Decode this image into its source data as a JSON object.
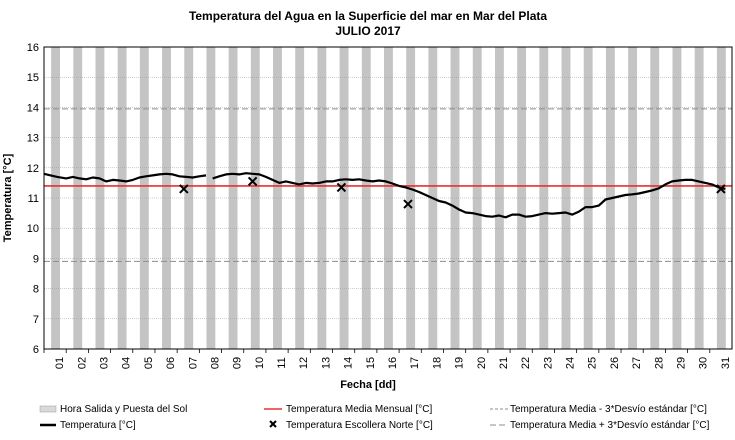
{
  "chart_data": {
    "type": "line",
    "title": "Temperatura del Agua en la Superficie del mar en Mar del Plata",
    "subtitle": "JULIO 2017",
    "xlabel": "Fecha [dd]",
    "ylabel": "Temperatura [°C]",
    "ylim": [
      6,
      16
    ],
    "yticks": [
      6,
      7,
      8,
      9,
      10,
      11,
      12,
      13,
      14,
      15,
      16
    ],
    "xlim": [
      1,
      32
    ],
    "categories": [
      "01",
      "02",
      "03",
      "04",
      "05",
      "06",
      "07",
      "08",
      "09",
      "10",
      "11",
      "12",
      "13",
      "14",
      "15",
      "16",
      "17",
      "18",
      "19",
      "20",
      "21",
      "22",
      "23",
      "24",
      "25",
      "26",
      "27",
      "28",
      "29",
      "30",
      "31"
    ],
    "grid": true,
    "legend_position": "bottom",
    "series": [
      {
        "name": "Temperatura [°C]",
        "color": "#000000",
        "segments": [
          [
            [
              1.0,
              11.8
            ],
            [
              1.3,
              11.75
            ],
            [
              1.6,
              11.7
            ],
            [
              2.0,
              11.65
            ],
            [
              2.3,
              11.7
            ],
            [
              2.6,
              11.65
            ],
            [
              2.9,
              11.62
            ],
            [
              3.2,
              11.68
            ],
            [
              3.5,
              11.65
            ],
            [
              3.8,
              11.55
            ],
            [
              4.1,
              11.6
            ],
            [
              4.4,
              11.58
            ],
            [
              4.7,
              11.55
            ],
            [
              5.0,
              11.6
            ],
            [
              5.3,
              11.68
            ],
            [
              5.6,
              11.72
            ],
            [
              5.9,
              11.75
            ],
            [
              6.2,
              11.78
            ],
            [
              6.5,
              11.8
            ],
            [
              6.8,
              11.78
            ],
            [
              7.1,
              11.72
            ],
            [
              7.4,
              11.7
            ],
            [
              7.7,
              11.68
            ],
            [
              8.0,
              11.72
            ],
            [
              8.3,
              11.75
            ]
          ],
          [
            [
              8.6,
              11.65
            ],
            [
              8.9,
              11.72
            ],
            [
              9.2,
              11.78
            ],
            [
              9.5,
              11.8
            ],
            [
              9.8,
              11.78
            ],
            [
              10.1,
              11.82
            ],
            [
              10.4,
              11.8
            ],
            [
              10.7,
              11.78
            ],
            [
              11.0,
              11.7
            ],
            [
              11.3,
              11.6
            ],
            [
              11.6,
              11.5
            ],
            [
              11.9,
              11.55
            ],
            [
              12.2,
              11.5
            ],
            [
              12.5,
              11.45
            ],
            [
              12.8,
              11.5
            ],
            [
              13.1,
              11.48
            ],
            [
              13.4,
              11.5
            ],
            [
              13.7,
              11.55
            ],
            [
              14.0,
              11.55
            ],
            [
              14.3,
              11.6
            ],
            [
              14.6,
              11.62
            ],
            [
              14.9,
              11.6
            ],
            [
              15.2,
              11.62
            ],
            [
              15.5,
              11.58
            ],
            [
              15.8,
              11.55
            ],
            [
              16.1,
              11.58
            ],
            [
              16.4,
              11.55
            ],
            [
              16.7,
              11.48
            ],
            [
              17.0,
              11.4
            ],
            [
              17.3,
              11.35
            ],
            [
              17.6,
              11.28
            ],
            [
              17.9,
              11.2
            ],
            [
              18.2,
              11.1
            ],
            [
              18.5,
              11.0
            ],
            [
              18.8,
              10.9
            ],
            [
              19.1,
              10.85
            ],
            [
              19.4,
              10.75
            ],
            [
              19.7,
              10.62
            ],
            [
              20.0,
              10.52
            ],
            [
              20.3,
              10.5
            ],
            [
              20.6,
              10.45
            ],
            [
              20.9,
              10.4
            ],
            [
              21.2,
              10.38
            ],
            [
              21.5,
              10.42
            ],
            [
              21.8,
              10.36
            ],
            [
              22.1,
              10.45
            ],
            [
              22.4,
              10.45
            ],
            [
              22.7,
              10.38
            ],
            [
              23.0,
              10.4
            ],
            [
              23.3,
              10.45
            ],
            [
              23.6,
              10.5
            ],
            [
              23.9,
              10.48
            ],
            [
              24.2,
              10.5
            ],
            [
              24.5,
              10.52
            ],
            [
              24.8,
              10.45
            ],
            [
              25.1,
              10.55
            ],
            [
              25.4,
              10.7
            ],
            [
              25.7,
              10.7
            ],
            [
              26.0,
              10.75
            ],
            [
              26.3,
              10.95
            ],
            [
              26.6,
              11.0
            ],
            [
              26.9,
              11.05
            ],
            [
              27.2,
              11.1
            ],
            [
              27.5,
              11.12
            ],
            [
              27.8,
              11.15
            ],
            [
              28.1,
              11.2
            ],
            [
              28.4,
              11.25
            ],
            [
              28.7,
              11.32
            ],
            [
              29.0,
              11.45
            ],
            [
              29.3,
              11.55
            ],
            [
              29.6,
              11.58
            ],
            [
              29.9,
              11.6
            ],
            [
              30.2,
              11.6
            ],
            [
              30.5,
              11.55
            ],
            [
              30.8,
              11.5
            ],
            [
              31.1,
              11.45
            ],
            [
              31.4,
              11.35
            ],
            [
              31.7,
              11.3
            ]
          ]
        ]
      },
      {
        "name": "Temperatura Media Mensual [°C]",
        "color": "#e8302f",
        "value": 11.4
      },
      {
        "name": "Temperatura Media - 3*Desvío estándar [°C]",
        "color": "#8c8c8c",
        "value": 8.9
      },
      {
        "name": "Temperatura Media + 3*Desvío estándar [°C]",
        "color": "#8c8c8c",
        "value": 13.95
      },
      {
        "name": "Temperatura Escollera Norte [°C]",
        "color": "#000000",
        "points": [
          [
            7.3,
            11.3
          ],
          [
            10.4,
            11.55
          ],
          [
            14.4,
            11.35
          ],
          [
            17.4,
            10.8
          ],
          [
            31.5,
            11.3
          ]
        ]
      },
      {
        "name": "Hora Salida y Puesta del Sol",
        "color": "#c0c0c0"
      }
    ]
  }
}
